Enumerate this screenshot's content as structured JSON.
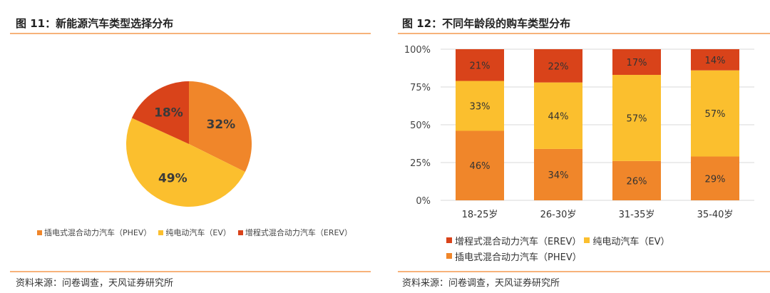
{
  "left": {
    "title": "图 11：新能源汽车类型选择分布",
    "source": "资料来源：问卷调查，天风证券研究所"
  },
  "right": {
    "title": "图 12：不同年龄段的购车类型分布",
    "source": "资料来源：问卷调查，天风证券研究所"
  },
  "colors": {
    "phev": "#f0862a",
    "ev": "#fbbf2e",
    "erev": "#d9431a",
    "rule": "#f7b27a"
  },
  "chart_data": [
    {
      "type": "pie",
      "slices": [
        {
          "name": "插电式混合动力汽车（PHEV）",
          "value": 32,
          "label": "32%",
          "color": "#f0862a"
        },
        {
          "name": "纯电动汽车（EV）",
          "value": 49,
          "label": "49%",
          "color": "#fbbf2e"
        },
        {
          "name": "增程式混合动力汽车（EREV）",
          "value": 18,
          "label": "18%",
          "color": "#d9431a"
        }
      ],
      "legend_position": "bottom"
    },
    {
      "type": "bar",
      "stacked": true,
      "percent": true,
      "categories": [
        "18-25岁",
        "26-30岁",
        "31-35岁",
        "35-40岁"
      ],
      "series": [
        {
          "name": "插电式混合动力汽车（PHEV）",
          "values": [
            46,
            34,
            26,
            29
          ],
          "labels": [
            "46%",
            "34%",
            "26%",
            "29%"
          ],
          "color": "#f0862a"
        },
        {
          "name": "纯电动汽车（EV）",
          "values": [
            33,
            44,
            57,
            57
          ],
          "labels": [
            "33%",
            "44%",
            "57%",
            "57%"
          ],
          "color": "#fbbf2e"
        },
        {
          "name": "增程式混合动力汽车（EREV）",
          "values": [
            21,
            22,
            17,
            14
          ],
          "labels": [
            "21%",
            "22%",
            "17%",
            "14%"
          ],
          "color": "#d9431a"
        }
      ],
      "ylim": [
        0,
        100
      ],
      "yticks": [
        "0%",
        "25%",
        "50%",
        "75%",
        "100%"
      ],
      "grid": true,
      "legend_position": "bottom",
      "legend": {
        "line1": [
          "增程式混合动力汽车（EREV）",
          "纯电动汽车（EV）"
        ],
        "line2": [
          "插电式混合动力汽车（PHEV）"
        ]
      }
    }
  ]
}
